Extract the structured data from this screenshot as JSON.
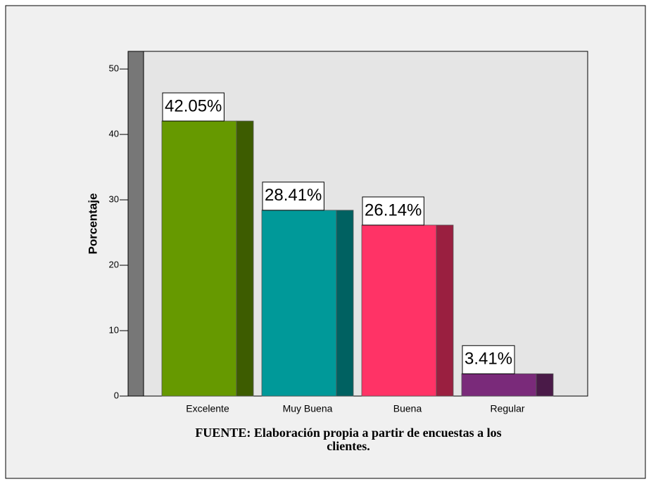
{
  "chart_data": {
    "type": "bar3d",
    "y_label": "Porcentaje",
    "categories": [
      "Excelente",
      "Muy Buena",
      "Buena",
      "Regular"
    ],
    "values": [
      42.05,
      28.41,
      26.14,
      3.41
    ],
    "value_labels": [
      "42.05%",
      "28.41%",
      "26.14%",
      "3.41%"
    ],
    "colors": [
      "#669900",
      "#009999",
      "#ff3366",
      "#7a2a7a"
    ],
    "side_colors": [
      "#3d5c00",
      "#006161",
      "#9a1f40",
      "#4a1a48"
    ],
    "ylim": [
      0,
      52.7
    ],
    "yticks": [
      0,
      10,
      20,
      30,
      40,
      50
    ],
    "source": [
      "FUENTE: Elaboración propia a partir de encuestas a los",
      "clientes."
    ]
  }
}
